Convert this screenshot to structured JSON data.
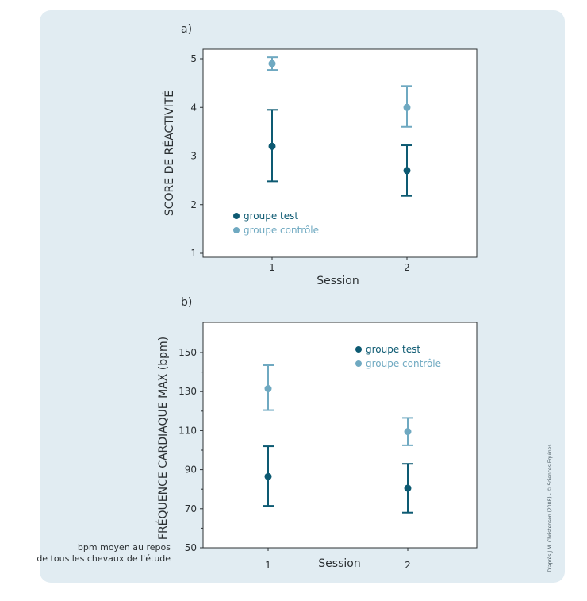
{
  "colors": {
    "test": "#0d5a72",
    "control": "#6fa9c1",
    "axis": "#2b3033",
    "background": "#e1ecf2",
    "plot": "#ffffff"
  },
  "credit": "D'après J.M. Christensen (2008) - © Sciences Équines",
  "baseline_note": [
    "bpm moyen au repos",
    "de tous les chevaux de l'étude"
  ],
  "chart_data": [
    {
      "panel_label": "a)",
      "type": "scatter",
      "xlabel": "Session",
      "ylabel": "SCORE DE RÉACTIVITÉ",
      "x": [
        "1",
        "2"
      ],
      "ylim": [
        1,
        5.2
      ],
      "yticks": [
        1,
        2,
        3,
        4,
        5
      ],
      "legend": {
        "position": "bottom-left"
      },
      "series": [
        {
          "name": "groupe test",
          "color_key": "test",
          "values": [
            3.2,
            2.7
          ],
          "err_low": [
            2.48,
            2.18
          ],
          "err_high": [
            3.95,
            3.22
          ]
        },
        {
          "name": "groupe contrôle",
          "color_key": "control",
          "values": [
            4.9,
            4.0
          ],
          "err_low": [
            4.77,
            3.6
          ],
          "err_high": [
            5.03,
            4.44
          ]
        }
      ]
    },
    {
      "panel_label": "b)",
      "type": "scatter",
      "xlabel": "Session",
      "ylabel": "FRÉQUENCE CARDIAQUE MAX (bpm)",
      "x": [
        "1",
        "2"
      ],
      "ylim": [
        50,
        165
      ],
      "yticks": [
        50,
        70,
        90,
        110,
        130,
        150
      ],
      "legend": {
        "position": "top-right"
      },
      "series": [
        {
          "name": "groupe test",
          "color_key": "test",
          "values": [
            86.5,
            80.5
          ],
          "err_low": [
            71.5,
            68
          ],
          "err_high": [
            102,
            93
          ]
        },
        {
          "name": "groupe contrôle",
          "color_key": "control",
          "values": [
            131.5,
            109.5
          ],
          "err_low": [
            120.5,
            102.5
          ],
          "err_high": [
            143.5,
            116.5
          ]
        }
      ]
    }
  ]
}
